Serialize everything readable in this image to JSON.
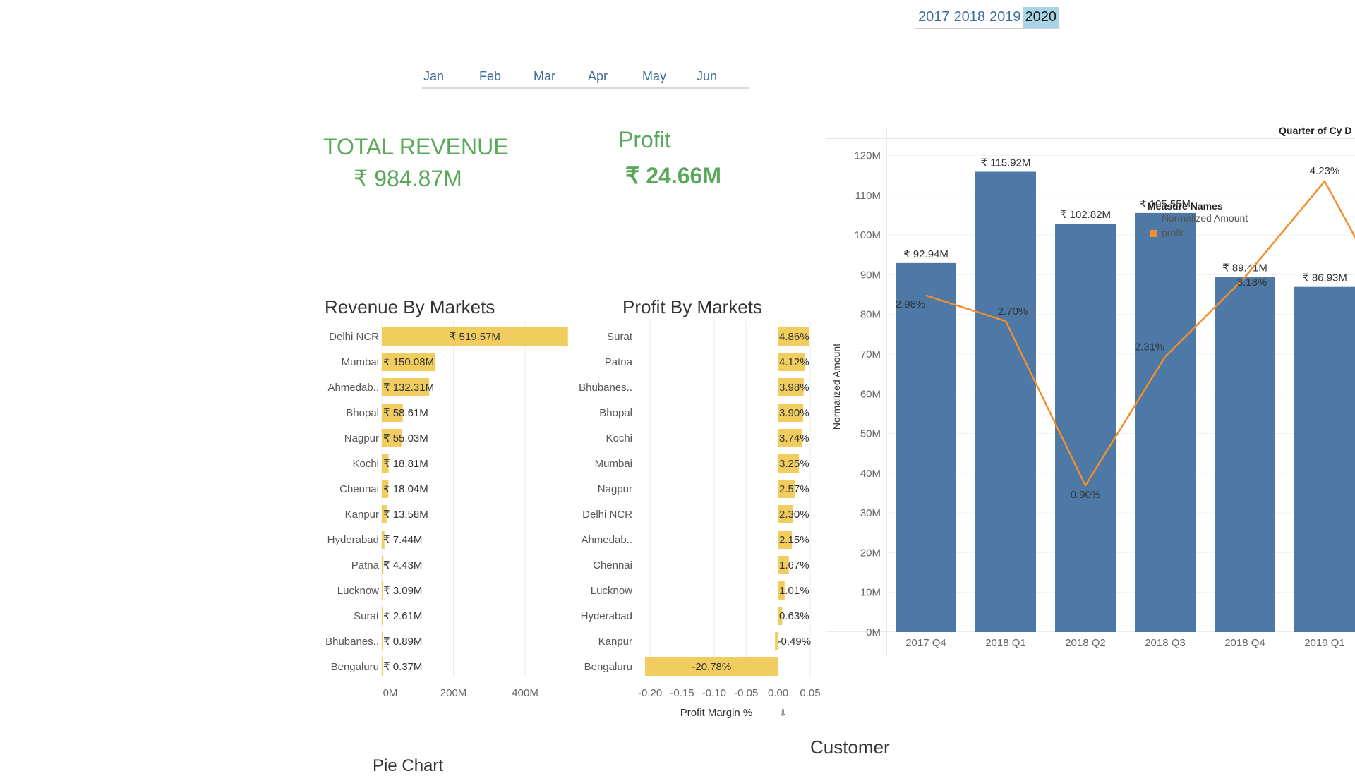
{
  "year_filter": {
    "years": [
      "2017",
      "2018",
      "2019",
      "2020"
    ],
    "selected": "2020"
  },
  "month_filter": {
    "months": [
      "Jan",
      "Feb",
      "Mar",
      "Apr",
      "May",
      "Jun"
    ]
  },
  "kpi": {
    "revenue_label": "TOTAL REVENUE",
    "revenue_value": "₹ 984.87M",
    "profit_label": "Profit",
    "profit_value": "₹ 24.66M"
  },
  "footer": {
    "customer_label": "Customer",
    "pie_chart_label": "Pie Chart"
  },
  "colors": {
    "kpi_green": "#5aa85a",
    "bar_yellow": "#f0cd5e",
    "bar_blue": "#4e79a7",
    "line_orange": "#f28e2b"
  },
  "chart_data": [
    {
      "type": "bar",
      "title": "Revenue By Markets",
      "categories": [
        "Delhi NCR",
        "Mumbai",
        "Ahmedab..",
        "Bhopal",
        "Nagpur",
        "Kochi",
        "Chennai",
        "Kanpur",
        "Hyderabad",
        "Patna",
        "Lucknow",
        "Surat",
        "Bhubanes..",
        "Bengaluru"
      ],
      "values": [
        519.57,
        150.08,
        132.31,
        58.61,
        55.03,
        18.81,
        18.04,
        13.58,
        7.44,
        4.43,
        3.09,
        2.61,
        0.89,
        0.37
      ],
      "labels": [
        "₹ 519.57M",
        "₹ 150.08M",
        "₹ 132.31M",
        "₹ 58.61M",
        "₹ 55.03M",
        "₹ 18.81M",
        "₹ 18.04M",
        "₹ 13.58M",
        "₹ 7.44M",
        "₹ 4.43M",
        "₹ 3.09M",
        "₹ 2.61M",
        "₹ 0.89M",
        "₹ 0.37M"
      ],
      "xticks": [
        "0M",
        "200M",
        "400M"
      ],
      "xlim": [
        0,
        520
      ],
      "orientation": "horizontal"
    },
    {
      "type": "bar",
      "title": "Profit By Markets",
      "categories": [
        "Surat",
        "Patna",
        "Bhubanes..",
        "Bhopal",
        "Kochi",
        "Mumbai",
        "Nagpur",
        "Delhi NCR",
        "Ahmedab..",
        "Chennai",
        "Lucknow",
        "Hyderabad",
        "Kanpur",
        "Bengaluru"
      ],
      "values": [
        4.86,
        4.12,
        3.98,
        3.9,
        3.74,
        3.25,
        2.57,
        2.3,
        2.15,
        1.67,
        1.01,
        0.63,
        -0.49,
        -20.78
      ],
      "labels": [
        "4.86%",
        "4.12%",
        "3.98%",
        "3.90%",
        "3.74%",
        "3.25%",
        "2.57%",
        "2.30%",
        "2.15%",
        "1.67%",
        "1.01%",
        "0.63%",
        "-0.49%",
        "-20.78%"
      ],
      "xticks": [
        "-0.20",
        "-0.15",
        "-0.10",
        "-0.05",
        "0.00",
        "0.05"
      ],
      "xlim": [
        -0.21,
        0.05
      ],
      "xlabel": "Profit Margin %",
      "orientation": "horizontal"
    },
    {
      "type": "bar",
      "xlabel": "",
      "ylabel": "Normalized Amount",
      "categories": [
        "2017 Q4",
        "2018 Q1",
        "2018 Q2",
        "2018 Q3",
        "2018 Q4",
        "2019 Q1"
      ],
      "bar_values": [
        92.94,
        115.92,
        102.82,
        105.55,
        89.41,
        86.93
      ],
      "bar_labels": [
        "₹ 92.94M",
        "₹ 115.92M",
        "₹ 102.82M",
        "₹ 105.55M",
        "₹ 89.41M",
        "₹ 86.93M"
      ],
      "line_values": [
        2.98,
        2.7,
        0.9,
        2.31,
        3.18,
        4.23
      ],
      "line_labels": [
        "2.98%",
        "2.70%",
        "0.90%",
        "2.31%",
        "3.18%",
        "4.23%"
      ],
      "yticks": [
        "0M",
        "10M",
        "20M",
        "30M",
        "40M",
        "50M",
        "60M",
        "70M",
        "80M",
        "90M",
        "100M",
        "110M",
        "120M"
      ],
      "ylim": [
        0,
        124
      ],
      "header": "Quarter of Cy D",
      "legend": {
        "title": "Measure Names",
        "items": [
          "Normalized Amount",
          "profit"
        ],
        "placement": "top-right"
      }
    }
  ]
}
